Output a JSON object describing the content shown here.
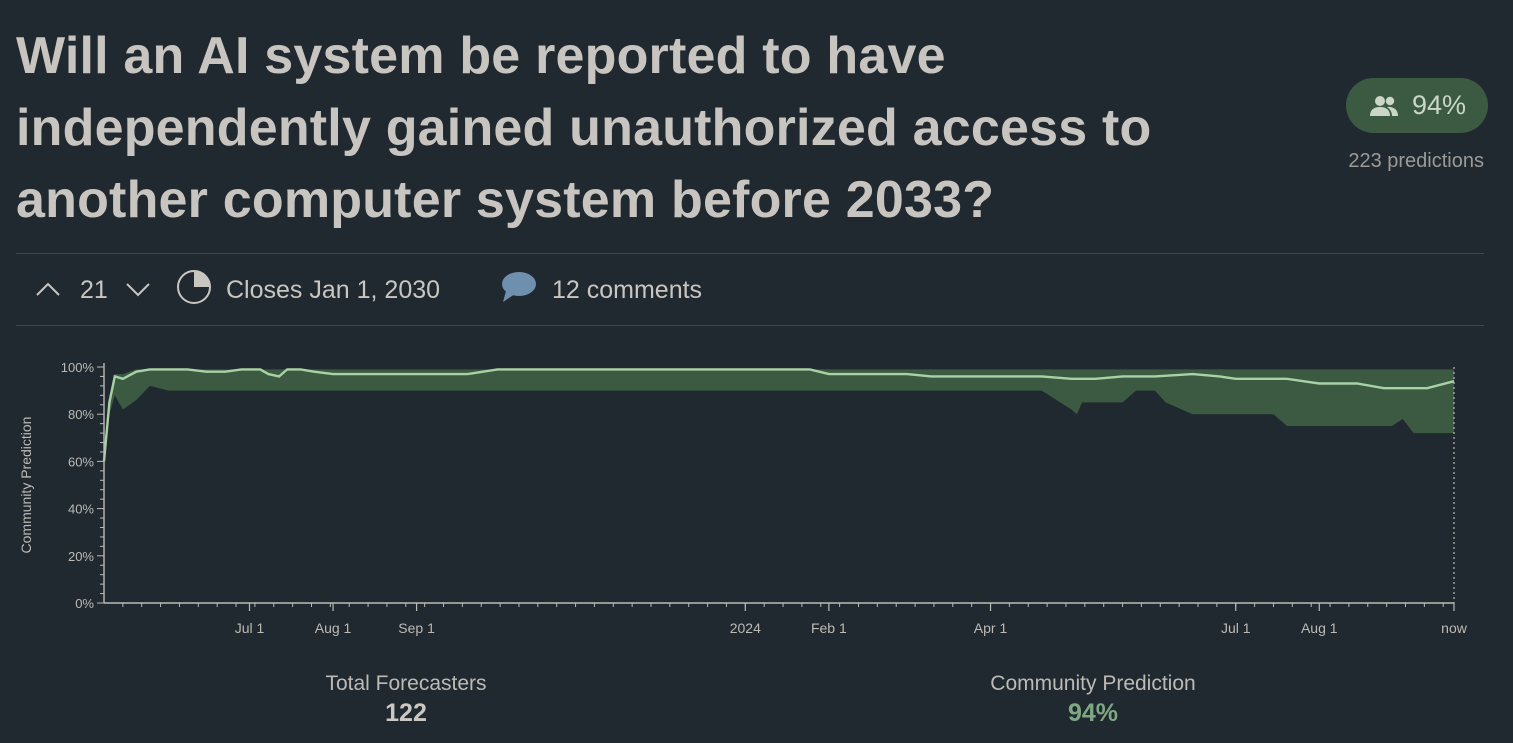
{
  "question": {
    "title": "Will an AI system be reported to have independently gained unauthorized access to another computer system before 2033?"
  },
  "badge": {
    "icon": "users-icon",
    "value": "94%",
    "predictions": "223 predictions",
    "color": "#3c5a42"
  },
  "meta": {
    "votes": "21",
    "closes": "Closes Jan 1, 2030",
    "comments": "12 comments"
  },
  "stats": {
    "forecasters_label": "Total Forecasters",
    "forecasters_value": "122",
    "cp_label": "Community Prediction",
    "cp_value": "94%"
  },
  "chart_data": {
    "type": "area",
    "ylabel": "Community Prediction",
    "ylim": [
      0,
      100
    ],
    "y_ticks": [
      "0%",
      "20%",
      "40%",
      "60%",
      "80%",
      "100%"
    ],
    "x_tick_labels": [
      "Jul 1",
      "Aug 1",
      "Sep 1",
      "2024",
      "Feb 1",
      "Apr 1",
      "Jul 1",
      "Aug 1",
      "now"
    ],
    "line_color": "#a9d1a6",
    "band_color": "#3c5a42",
    "series": [
      {
        "name": "Community Prediction",
        "x": [
          "2023-05-08",
          "2023-05-10",
          "2023-05-12",
          "2023-05-15",
          "2023-05-20",
          "2023-05-25",
          "2023-06-01",
          "2023-06-08",
          "2023-06-15",
          "2023-06-22",
          "2023-06-28",
          "2023-07-01",
          "2023-07-05",
          "2023-07-08",
          "2023-07-12",
          "2023-07-15",
          "2023-07-20",
          "2023-07-25",
          "2023-08-01",
          "2023-08-15",
          "2023-09-01",
          "2023-09-15",
          "2023-09-20",
          "2023-10-01",
          "2023-11-01",
          "2023-12-01",
          "2024-01-01",
          "2024-01-20",
          "2024-01-25",
          "2024-02-01",
          "2024-03-01",
          "2024-03-10",
          "2024-04-01",
          "2024-04-20",
          "2024-05-01",
          "2024-05-10",
          "2024-05-20",
          "2024-06-01",
          "2024-06-15",
          "2024-06-25",
          "2024-07-01",
          "2024-07-15",
          "2024-07-20",
          "2024-08-01",
          "2024-08-15",
          "2024-08-25",
          "2024-09-01",
          "2024-09-10",
          "2024-09-20"
        ],
        "values": [
          60,
          85,
          96,
          95,
          98,
          99,
          99,
          99,
          98,
          98,
          99,
          99,
          99,
          97,
          96,
          99,
          99,
          98,
          97,
          97,
          97,
          97,
          97,
          99,
          99,
          99,
          99,
          99,
          99,
          97,
          97,
          96,
          96,
          96,
          95,
          95,
          96,
          96,
          97,
          96,
          95,
          95,
          95,
          93,
          93,
          91,
          91,
          91,
          94
        ]
      },
      {
        "name": "Lower bound",
        "x": [
          "2023-05-08",
          "2023-05-10",
          "2023-05-12",
          "2023-05-15",
          "2023-05-20",
          "2023-05-25",
          "2023-06-01",
          "2024-04-20",
          "2024-05-01",
          "2024-05-03",
          "2024-05-05",
          "2024-05-20",
          "2024-05-25",
          "2024-06-01",
          "2024-06-05",
          "2024-06-15",
          "2024-06-20",
          "2024-07-01",
          "2024-07-15",
          "2024-07-20",
          "2024-08-01",
          "2024-08-15",
          "2024-08-28",
          "2024-09-01",
          "2024-09-05",
          "2024-09-20"
        ],
        "values": [
          58,
          80,
          88,
          82,
          86,
          92,
          90,
          90,
          82,
          80,
          85,
          85,
          90,
          90,
          85,
          80,
          80,
          80,
          80,
          75,
          75,
          75,
          75,
          78,
          72,
          72
        ]
      },
      {
        "name": "Upper bound",
        "x": [
          "2023-05-08",
          "2023-05-10",
          "2023-05-12",
          "2023-05-15",
          "2023-05-20",
          "2024-09-20"
        ],
        "values": [
          62,
          88,
          97,
          97,
          99,
          99
        ]
      }
    ]
  }
}
